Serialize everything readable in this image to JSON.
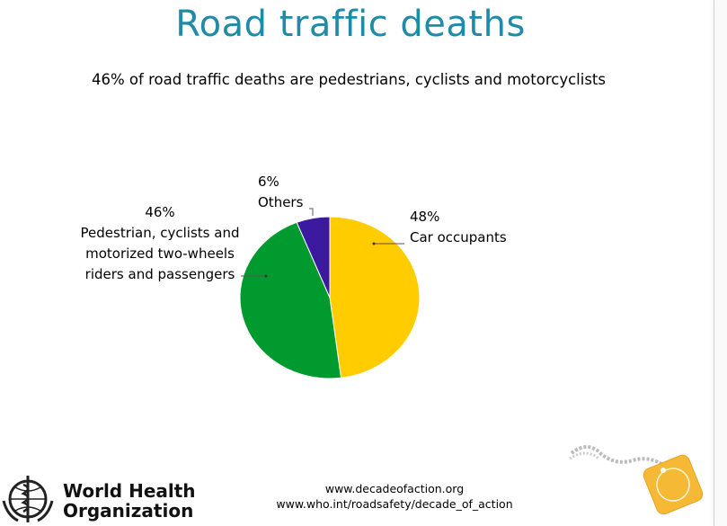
{
  "slide": {
    "title": "Road traffic deaths",
    "subtitle": "46% of road traffic deaths are pedestrians, cyclists and motorcyclists"
  },
  "chart_data": {
    "type": "pie",
    "slices": [
      {
        "label": "Car occupants",
        "value": 48,
        "color": "#ffcc00"
      },
      {
        "label": "Pedestrian, cyclists and motorized two-wheels riders and passengers",
        "value": 46,
        "color": "#009a2e"
      },
      {
        "label": "Others",
        "value": 6,
        "color": "#3b1aa0"
      }
    ]
  },
  "labels": {
    "pedestrian": {
      "pct": "46%",
      "lines": [
        "Pedestrian, cyclists and",
        "motorized two-wheels",
        "riders and passengers"
      ]
    },
    "others": {
      "pct": "6%",
      "name": "Others"
    },
    "car": {
      "pct": "48%",
      "name": "Car occupants"
    }
  },
  "footer": {
    "url1": "www.decadeofaction.org",
    "url2": "www.who.int/roadsafety/decade_of_action",
    "org_line1": "World Health",
    "org_line2": "Organization"
  },
  "colors": {
    "title": "#1f8ba8",
    "badge": "#f5b935"
  }
}
